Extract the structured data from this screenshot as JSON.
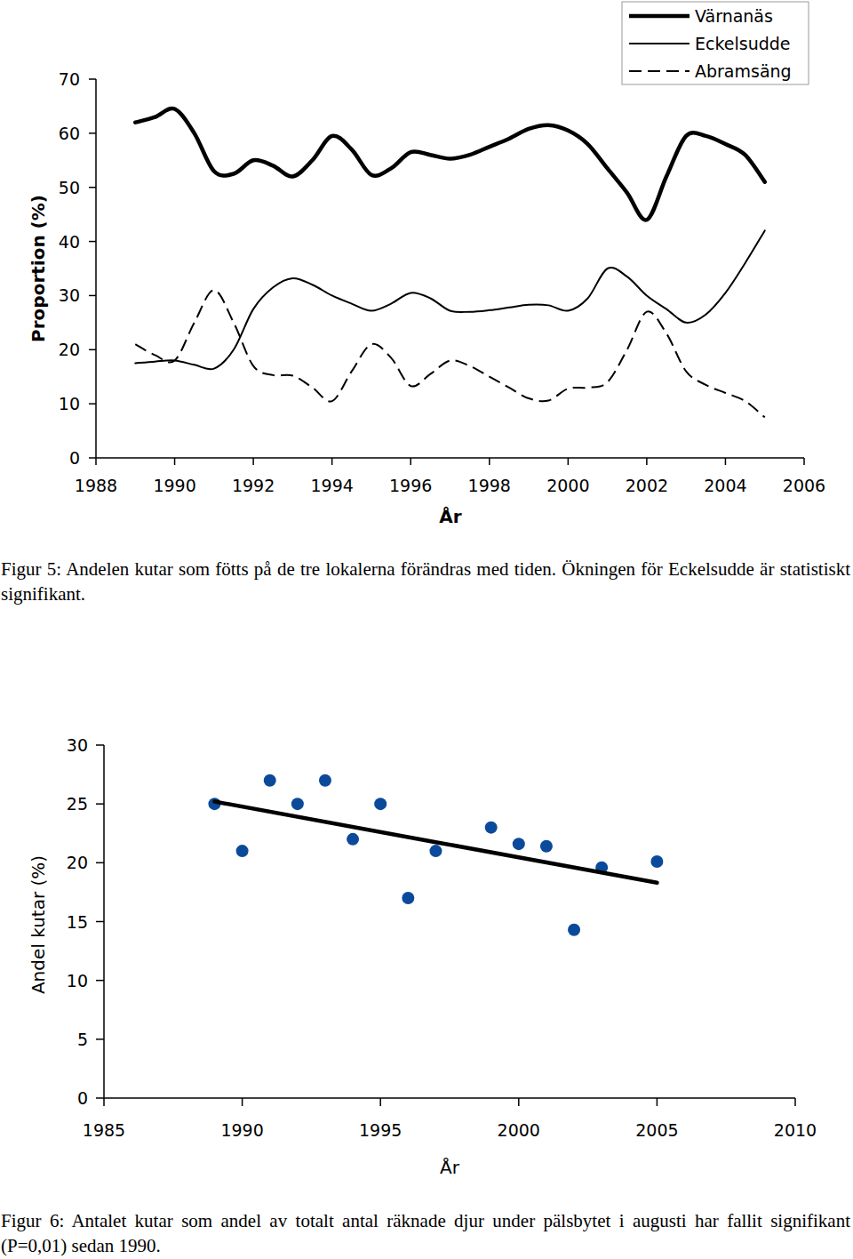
{
  "chart_data": [
    {
      "type": "line",
      "caption": "Figur 5: Andelen kutar som fötts på de tre lokalerna förändras med tiden. Ökningen för Eckelsudde är statistiskt signifikant.",
      "x_label": "År",
      "y_label": "Proportion (%)",
      "legend": "top-right",
      "xlim": [
        1988,
        2006
      ],
      "xticks": [
        1988,
        1990,
        1992,
        1994,
        1996,
        1998,
        2000,
        2002,
        2004,
        2006
      ],
      "ylim": [
        0,
        70
      ],
      "yticks": [
        0,
        10,
        20,
        30,
        40,
        50,
        60,
        70
      ],
      "x": [
        1989,
        1989.5,
        1990,
        1990.5,
        1991,
        1991.5,
        1992,
        1992.5,
        1993,
        1993.5,
        1994,
        1994.5,
        1995,
        1995.5,
        1996,
        1996.5,
        1997,
        1997.5,
        1998,
        1998.5,
        1999,
        1999.5,
        2000,
        2000.5,
        2001,
        2001.5,
        2002,
        2002.5,
        2003,
        2003.5,
        2004,
        2004.5,
        2005
      ],
      "series": [
        {
          "name": "Värnanäs",
          "color": "#000000",
          "line_style": "thick",
          "values": [
            62,
            63,
            64.5,
            60,
            53,
            52.5,
            55,
            54,
            52,
            55,
            59.5,
            57,
            52.3,
            53.5,
            56.5,
            56,
            55.3,
            56,
            57.5,
            59,
            60.8,
            61.5,
            60.5,
            58,
            53.5,
            49,
            44,
            52,
            59.5,
            59.5,
            58,
            56,
            51
          ]
        },
        {
          "name": "Eckelsudde",
          "color": "#000000",
          "line_style": "solid",
          "values": [
            17.5,
            17.8,
            18,
            17.2,
            16.5,
            20,
            27.5,
            31.5,
            33.2,
            32,
            30,
            28.5,
            27.2,
            28.5,
            30.5,
            29.5,
            27.2,
            27,
            27.3,
            27.8,
            28.3,
            28.2,
            27.2,
            29.5,
            35,
            33.5,
            30,
            27.5,
            25,
            26.5,
            30.5,
            36,
            42
          ]
        },
        {
          "name": "Abramsäng",
          "color": "#000000",
          "line_style": "dashed",
          "values": [
            21,
            19,
            18,
            25,
            31,
            25,
            17,
            15.3,
            15.2,
            13,
            10.5,
            16,
            21,
            18.5,
            13.3,
            15.5,
            18,
            17,
            15,
            13,
            11,
            10.6,
            12.8,
            13,
            14,
            20,
            27,
            23,
            16,
            13.5,
            12,
            10.5,
            7.5
          ]
        }
      ]
    },
    {
      "type": "scatter",
      "caption": "Figur 6: Antalet kutar som andel av totalt antal räknade djur  under pälsbytet i augusti har fallit signifikant (P=0,01) sedan 1990.",
      "x_label": "År",
      "y_label": "Andel kutar (%)",
      "xlim": [
        1985,
        2010
      ],
      "xticks": [
        1985,
        1990,
        1995,
        2000,
        2005,
        2010
      ],
      "ylim": [
        0,
        30
      ],
      "yticks": [
        0,
        5,
        10,
        15,
        20,
        25,
        30
      ],
      "x": [
        1989,
        1990,
        1991,
        1992,
        1993,
        1994,
        1995,
        1996,
        1997,
        1999,
        2000,
        2001,
        2002,
        2003,
        2005
      ],
      "series": [
        {
          "type": "scatter",
          "color": "#0b4a9b",
          "marker": "circle",
          "values": [
            25,
            21,
            27,
            25,
            27,
            22,
            25,
            17,
            21,
            23,
            21.6,
            21.4,
            14.3,
            19.6,
            20.1
          ]
        },
        {
          "type": "line",
          "color": "#000000",
          "line_style": "thick",
          "x": [
            1989,
            2005
          ],
          "values": [
            25.2,
            18.3
          ]
        }
      ]
    }
  ]
}
